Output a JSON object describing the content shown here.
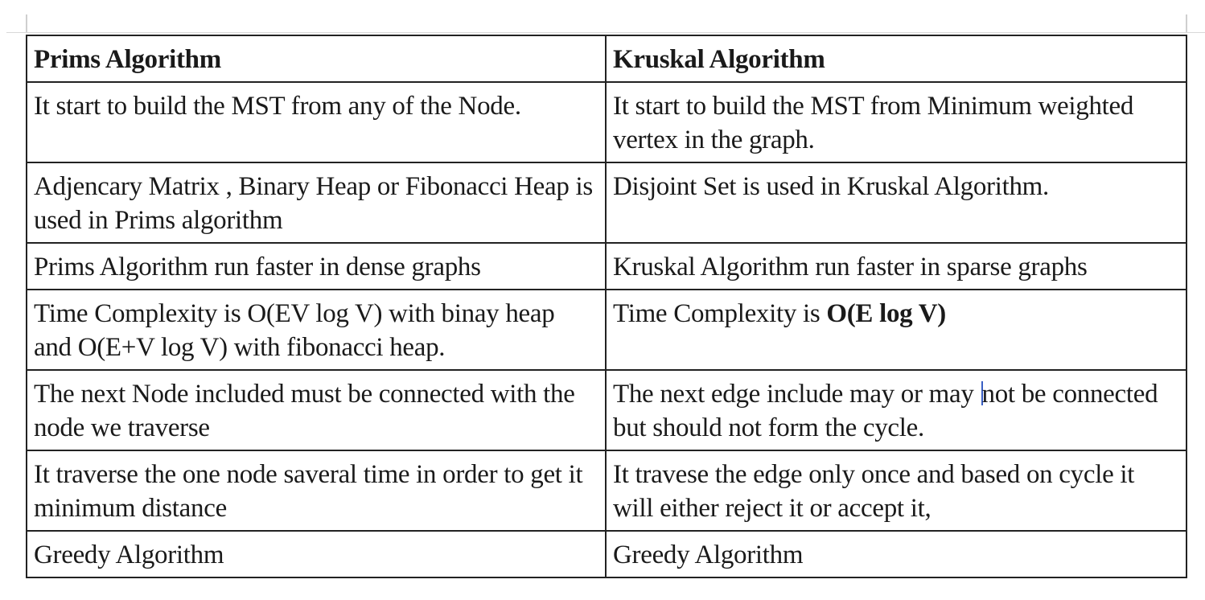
{
  "table": {
    "headers": [
      "Prims Algorithm",
      "Kruskal Algorithm"
    ],
    "rows": [
      {
        "prims": "It start to build the MST from any of the Node.",
        "kruskal": "It start to build the MST from Minimum weighted vertex in the graph."
      },
      {
        "prims": "Adjencary Matrix , Binary  Heap or Fibonacci Heap is used in Prims algorithm",
        "kruskal": "Disjoint Set is used in Kruskal Algorithm."
      },
      {
        "prims": "Prims Algorithm run faster in dense graphs",
        "kruskal": "Kruskal Algorithm run faster in sparse graphs"
      },
      {
        "prims": "Time Complexity is O(EV log V) with binay heap and O(E+V log V) with fibonacci heap.",
        "kruskal_prefix": "Time Complexity is ",
        "kruskal_emphasis": "O(E log V)"
      },
      {
        "prims": "The next Node included must be connected with the node we traverse",
        "kruskal_before_caret": "The next edge include may or may ",
        "kruskal_after_caret": "not be connected but should not form the cycle."
      },
      {
        "prims": "It traverse the one node saveral time  in order to get it minimum distance",
        "kruskal": "It travese the edge only once and based on cycle it will either reject it or accept it,"
      },
      {
        "prims": "Greedy Algorithm",
        "kruskal": "Greedy Algorithm"
      }
    ]
  },
  "colors": {
    "border": "#222222",
    "text": "#1a1a1a",
    "caret": "#3a5fc4"
  }
}
